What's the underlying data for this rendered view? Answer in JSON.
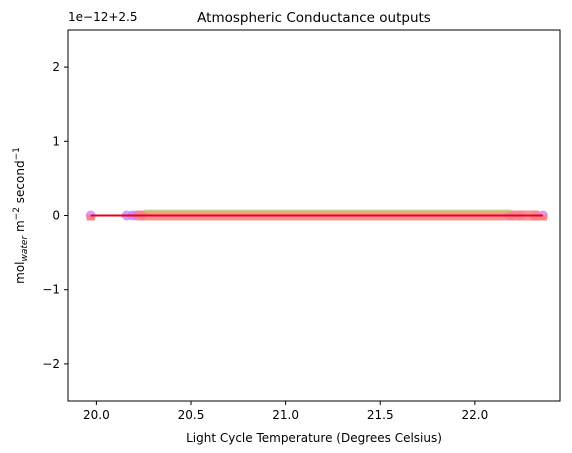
{
  "chart_data": {
    "type": "scatter",
    "title": "Atmospheric Conductance outputs",
    "xlabel": "Light Cycle Temperature (Degrees Celsius)",
    "ylabel_parts": {
      "base": "mol",
      "subscript": "water",
      "unit1": "m",
      "exp1": "−2",
      "unit2": "second",
      "exp2": "−1"
    },
    "offset_text": "1e−12+2.5",
    "xlim": [
      19.85,
      22.45
    ],
    "ylim": [
      -2.5,
      2.5
    ],
    "x_ticks": [
      {
        "value": 20.0,
        "label": "20.0"
      },
      {
        "value": 20.5,
        "label": "20.5"
      },
      {
        "value": 21.0,
        "label": "21.0"
      },
      {
        "value": 21.5,
        "label": "21.5"
      },
      {
        "value": 22.0,
        "label": "22.0"
      }
    ],
    "y_ticks": [
      {
        "value": -2,
        "label": "−2"
      },
      {
        "value": -1,
        "label": "−1"
      },
      {
        "value": 0,
        "label": "0"
      },
      {
        "value": 1,
        "label": "1"
      },
      {
        "value": 2,
        "label": "2"
      }
    ],
    "grid": false,
    "series": [
      {
        "kind": "points-circle",
        "color": "#c77cff",
        "x": [
          19.97,
          20.16,
          20.19,
          20.21,
          20.24,
          22.18,
          22.2,
          22.24,
          22.32,
          22.36
        ],
        "y": [
          0,
          0,
          0,
          0,
          0,
          0,
          0,
          0,
          0,
          0
        ]
      },
      {
        "kind": "band",
        "color": "#ff8080",
        "x_range": [
          20.2,
          22.35
        ],
        "y": 0
      },
      {
        "kind": "points-square",
        "color": "#ff8080",
        "x": [
          19.97,
          22.32,
          22.36
        ],
        "y": [
          0,
          0,
          0
        ]
      },
      {
        "kind": "line",
        "color": "#e8001c",
        "x": [
          19.97,
          22.36
        ],
        "y": [
          0,
          0
        ]
      }
    ]
  }
}
